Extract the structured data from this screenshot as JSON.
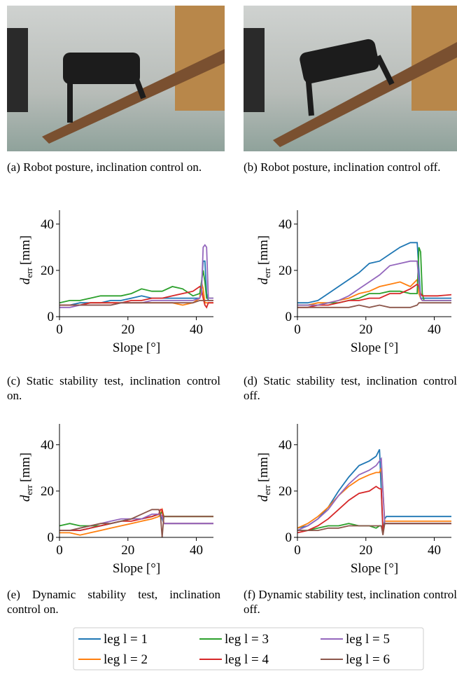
{
  "photos": [
    {
      "caption": "(a) Robot posture, inclination control on."
    },
    {
      "caption": "(b) Robot posture, inclination control off."
    }
  ],
  "chart_data": [
    {
      "type": "line",
      "caption": "(c) Static stability test, inclination control on.",
      "ylabel_symbol": "d",
      "ylabel_subscript": "err",
      "ylabel_unit": "[mm]",
      "xlabel": "Slope [°]",
      "xlim": [
        0,
        45
      ],
      "xticks": [
        0,
        20,
        40
      ],
      "ylim": [
        0,
        46
      ],
      "yticks": [
        0,
        20,
        40
      ],
      "x": [
        0,
        3,
        6,
        9,
        12,
        15,
        18,
        21,
        24,
        27,
        30,
        33,
        36,
        39,
        41,
        41.5,
        42,
        42.5,
        43,
        43.5,
        44,
        45
      ],
      "series": [
        {
          "name": "leg l = 1",
          "color": "#1f77b4",
          "values": [
            5,
            5,
            6,
            6,
            6,
            7,
            7,
            8,
            9,
            8,
            8,
            8,
            8,
            8,
            8,
            14,
            24,
            24,
            10,
            7,
            7,
            7
          ]
        },
        {
          "name": "leg l = 2",
          "color": "#ff7f0e",
          "values": [
            5,
            5,
            5,
            6,
            6,
            6,
            6,
            6,
            6,
            6,
            6,
            6,
            5,
            6,
            8,
            15,
            12,
            6,
            6,
            6,
            6,
            6
          ]
        },
        {
          "name": "leg l = 3",
          "color": "#2ca02c",
          "values": [
            6,
            7,
            7,
            8,
            9,
            9,
            9,
            10,
            12,
            11,
            11,
            13,
            12,
            9,
            10,
            15,
            20,
            15,
            8,
            8,
            8,
            8
          ]
        },
        {
          "name": "leg l = 4",
          "color": "#d62728",
          "values": [
            5,
            5,
            5,
            6,
            6,
            6,
            6,
            7,
            7,
            8,
            8,
            9,
            10,
            11,
            13,
            12,
            8,
            5,
            4,
            6,
            6,
            6
          ]
        },
        {
          "name": "leg l = 5",
          "color": "#9467bd",
          "values": [
            4,
            4,
            5,
            5,
            5,
            5,
            6,
            6,
            6,
            7,
            7,
            7,
            7,
            7,
            8,
            10,
            30,
            31,
            30,
            8,
            8,
            8
          ]
        },
        {
          "name": "leg l = 6",
          "color": "#8c564b",
          "values": [
            5,
            5,
            5,
            5,
            5,
            5,
            6,
            6,
            6,
            6,
            6,
            6,
            6,
            6,
            7,
            7,
            7,
            7,
            7,
            7,
            7,
            7
          ]
        }
      ]
    },
    {
      "type": "line",
      "caption": "(d) Static stability test, inclination control off.",
      "ylabel_symbol": "d",
      "ylabel_subscript": "err",
      "ylabel_unit": "[mm]",
      "xlabel": "Slope [°]",
      "xlim": [
        0,
        45
      ],
      "xticks": [
        0,
        20,
        40
      ],
      "ylim": [
        0,
        46
      ],
      "yticks": [
        0,
        20,
        40
      ],
      "x": [
        0,
        3,
        6,
        9,
        12,
        15,
        18,
        21,
        24,
        27,
        30,
        33,
        35,
        35.5,
        36,
        36.5,
        37,
        38,
        41,
        45
      ],
      "series": [
        {
          "color": "#1f77b4",
          "values": [
            6,
            6,
            7,
            10,
            13,
            16,
            19,
            23,
            24,
            27,
            30,
            32,
            32,
            20,
            8,
            8,
            8,
            8,
            8,
            8
          ]
        },
        {
          "color": "#ff7f0e",
          "values": [
            5,
            5,
            6,
            6,
            7,
            8,
            10,
            11,
            13,
            14,
            15,
            13,
            16,
            10,
            8,
            7,
            7,
            7,
            7,
            7
          ]
        },
        {
          "color": "#2ca02c",
          "values": [
            5,
            5,
            5,
            6,
            6,
            7,
            8,
            10,
            10,
            11,
            11,
            10,
            10,
            30,
            28,
            10,
            7,
            7,
            7,
            7
          ]
        },
        {
          "color": "#d62728",
          "values": [
            4,
            4,
            5,
            5,
            6,
            7,
            7,
            8,
            8,
            10,
            10,
            12,
            14,
            13,
            10,
            9,
            9,
            9,
            9,
            9.5
          ]
        },
        {
          "color": "#9467bd",
          "values": [
            5,
            5,
            5,
            6,
            7,
            9,
            12,
            15,
            18,
            22,
            23,
            24,
            24,
            15,
            8,
            7,
            7,
            7,
            7,
            7
          ]
        },
        {
          "color": "#8c564b",
          "values": [
            4,
            4,
            4,
            4,
            4,
            4,
            5,
            4,
            5,
            4,
            4,
            4,
            5,
            6,
            6,
            6,
            6,
            6,
            6,
            6
          ]
        }
      ]
    },
    {
      "type": "line",
      "caption": "(e) Dynamic stability test, inclination control on.",
      "ylabel_symbol": "d",
      "ylabel_subscript": "err",
      "ylabel_unit": "[mm]",
      "xlabel": "Slope [°]",
      "xlim": [
        0,
        45
      ],
      "xticks": [
        0,
        20,
        40
      ],
      "ylim": [
        0,
        49
      ],
      "yticks": [
        0,
        20,
        40
      ],
      "x": [
        0,
        3,
        6,
        9,
        12,
        15,
        18,
        21,
        24,
        27,
        29,
        29.5,
        30,
        30.5,
        31,
        35,
        40,
        45
      ],
      "series": [
        {
          "color": "#1f77b4",
          "values": [
            3,
            3,
            3,
            4,
            5,
            6,
            7,
            8,
            8,
            9,
            10,
            9,
            8,
            6,
            6,
            6,
            6,
            6
          ]
        },
        {
          "color": "#ff7f0e",
          "values": [
            2,
            2,
            1,
            2,
            3,
            4,
            5,
            6,
            7,
            8,
            9,
            10,
            12,
            9,
            9,
            9,
            9,
            9
          ]
        },
        {
          "color": "#2ca02c",
          "values": [
            5,
            6,
            5,
            5,
            5,
            6,
            7,
            8,
            8,
            9,
            10,
            10,
            11,
            9,
            9,
            9,
            9,
            9
          ]
        },
        {
          "color": "#d62728",
          "values": [
            3,
            3,
            3,
            4,
            5,
            6,
            7,
            7,
            8,
            9,
            10,
            12,
            12,
            6,
            6,
            6,
            6,
            6
          ]
        },
        {
          "color": "#9467bd",
          "values": [
            3,
            3,
            4,
            5,
            6,
            7,
            8,
            8,
            8,
            10,
            10,
            10,
            9,
            6,
            6,
            6,
            6,
            6
          ]
        },
        {
          "color": "#8c564b",
          "values": [
            3,
            3,
            4,
            5,
            6,
            6,
            7,
            8,
            10,
            12,
            12,
            10,
            0,
            9,
            9,
            9,
            9,
            9
          ]
        }
      ]
    },
    {
      "type": "line",
      "caption": "(f) Dynamic stability test, inclination control off.",
      "ylabel_symbol": "d",
      "ylabel_subscript": "err",
      "ylabel_unit": "[mm]",
      "xlabel": "Slope [°]",
      "xlim": [
        0,
        45
      ],
      "xticks": [
        0,
        20,
        40
      ],
      "ylim": [
        0,
        49
      ],
      "yticks": [
        0,
        20,
        40
      ],
      "x": [
        0,
        3,
        6,
        9,
        12,
        15,
        18,
        21,
        23,
        24,
        24.5,
        25,
        25.5,
        26,
        30,
        35,
        40,
        45
      ],
      "series": [
        {
          "color": "#1f77b4",
          "values": [
            4,
            5,
            8,
            13,
            20,
            26,
            31,
            33,
            35,
            38,
            20,
            2,
            8,
            9,
            9,
            9,
            9,
            9
          ]
        },
        {
          "color": "#ff7f0e",
          "values": [
            4,
            6,
            9,
            13,
            18,
            22,
            25,
            27,
            28,
            28,
            30,
            20,
            7,
            7,
            7,
            7,
            7,
            7
          ]
        },
        {
          "color": "#2ca02c",
          "values": [
            3,
            3,
            4,
            5,
            5,
            6,
            5,
            5,
            4,
            5,
            5,
            2,
            6,
            6,
            6,
            6,
            6,
            6
          ]
        },
        {
          "color": "#d62728",
          "values": [
            2,
            3,
            5,
            8,
            12,
            16,
            19,
            20,
            22,
            21,
            21,
            3,
            6,
            6,
            6,
            6,
            6,
            6
          ]
        },
        {
          "color": "#9467bd",
          "values": [
            3,
            5,
            8,
            12,
            18,
            23,
            27,
            29,
            31,
            33,
            34,
            20,
            6,
            6,
            6,
            6,
            6,
            6
          ]
        },
        {
          "color": "#8c564b",
          "values": [
            3,
            3,
            3,
            4,
            4,
            5,
            5,
            5,
            5,
            5,
            5,
            1,
            6,
            6,
            6,
            6,
            6,
            6
          ]
        }
      ]
    }
  ]
}
